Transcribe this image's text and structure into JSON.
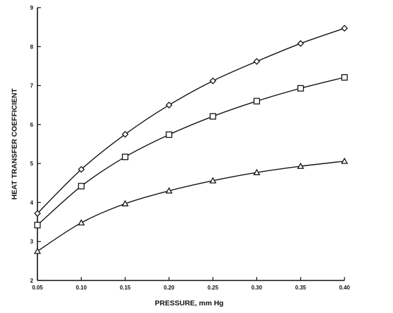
{
  "chart_data": {
    "type": "line",
    "title": "",
    "xlabel": "PRESSURE, mm Hg",
    "ylabel": "HEAT TRANSFER COEFFICIENT",
    "x": [
      0.05,
      0.1,
      0.15,
      0.2,
      0.25,
      0.3,
      0.35,
      0.4
    ],
    "x_tick_labels": [
      "0.05",
      "0.10",
      "0.15",
      "0.20",
      "0.25",
      "0.30",
      "0.35",
      "0.40"
    ],
    "y_ticks": [
      2,
      3,
      4,
      5,
      6,
      7,
      8,
      9
    ],
    "xlim": [
      0.05,
      0.4
    ],
    "ylim": [
      2,
      9
    ],
    "grid": false,
    "legend": "none",
    "line_color": "#111111",
    "series": [
      {
        "marker": "diamond",
        "values": [
          3.72,
          4.85,
          5.75,
          6.5,
          7.12,
          7.62,
          8.08,
          8.47
        ]
      },
      {
        "marker": "square",
        "values": [
          3.42,
          4.42,
          5.17,
          5.74,
          6.21,
          6.6,
          6.93,
          7.21
        ]
      },
      {
        "marker": "triangle",
        "values": [
          2.75,
          3.48,
          3.97,
          4.3,
          4.56,
          4.77,
          4.93,
          5.06
        ]
      }
    ]
  }
}
